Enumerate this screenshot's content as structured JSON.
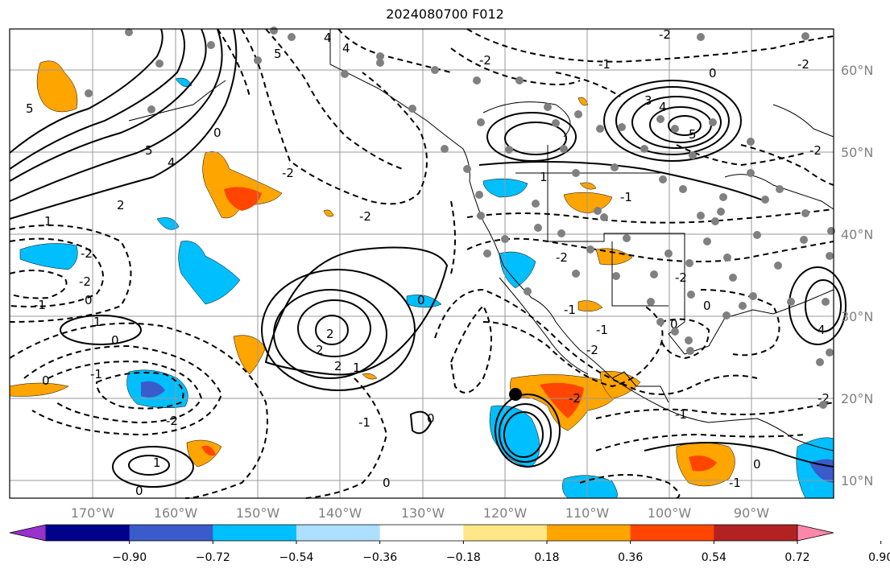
{
  "title": "2024080700 F012",
  "map": {
    "lon_ticks": [
      "170°W",
      "160°W",
      "150°W",
      "140°W",
      "130°W",
      "120°W",
      "110°W",
      "100°W",
      "90°W"
    ],
    "lat_ticks": [
      "10°N",
      "20°N",
      "30°N",
      "40°N",
      "50°N",
      "60°N"
    ],
    "contour_labels": [
      "-1",
      "-2",
      "0",
      "1",
      "2",
      "3",
      "4",
      "5"
    ]
  },
  "colorbar": {
    "ticks": [
      "−0.90",
      "−0.72",
      "−0.54",
      "−0.36",
      "−0.18",
      "0.18",
      "0.36",
      "0.54",
      "0.72",
      "0.90"
    ],
    "colors": [
      "#9932CC",
      "#00008B",
      "#3A5BC9",
      "#00BFFF",
      "#ADDFFF",
      "#FFFFFF",
      "#FFE787",
      "#FFA500",
      "#FF4500",
      "#B22222",
      "#FF88AA"
    ]
  }
}
